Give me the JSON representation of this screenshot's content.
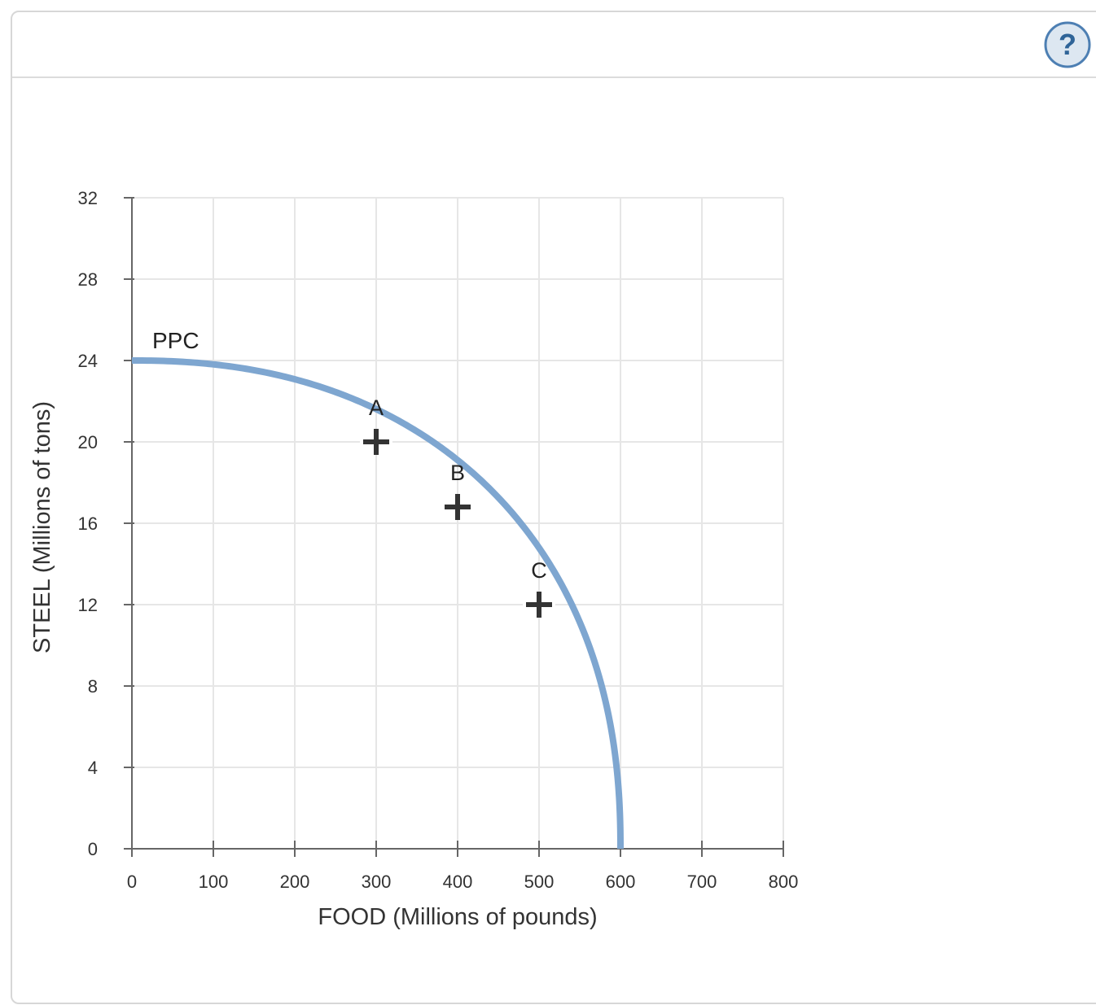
{
  "help": {
    "label": "?",
    "icon": "help-icon"
  },
  "chart_data": {
    "type": "line",
    "xlabel": "FOOD (Millions of pounds)",
    "ylabel": "STEEL (Millions of tons)",
    "xlim": [
      0,
      800
    ],
    "ylim": [
      0,
      32
    ],
    "x_ticks": [
      0,
      100,
      200,
      300,
      400,
      500,
      600,
      700,
      800
    ],
    "y_ticks": [
      0,
      4,
      8,
      12,
      16,
      20,
      24,
      28,
      32
    ],
    "grid": true,
    "series": [
      {
        "name": "PPC",
        "color": "#7ea6d0",
        "x": [
          0,
          100,
          200,
          300,
          400,
          500,
          600
        ],
        "y": [
          24,
          23.3,
          22.6,
          20,
          16.8,
          12,
          0
        ]
      }
    ],
    "points": [
      {
        "label": "A",
        "x": 300,
        "y": 20
      },
      {
        "label": "B",
        "x": 400,
        "y": 16.8
      },
      {
        "label": "C",
        "x": 500,
        "y": 12
      }
    ],
    "colors": {
      "curve": "#7ea6d0",
      "marker": "#333333",
      "axis": "#666666",
      "grid": "#e6e6e6"
    }
  }
}
